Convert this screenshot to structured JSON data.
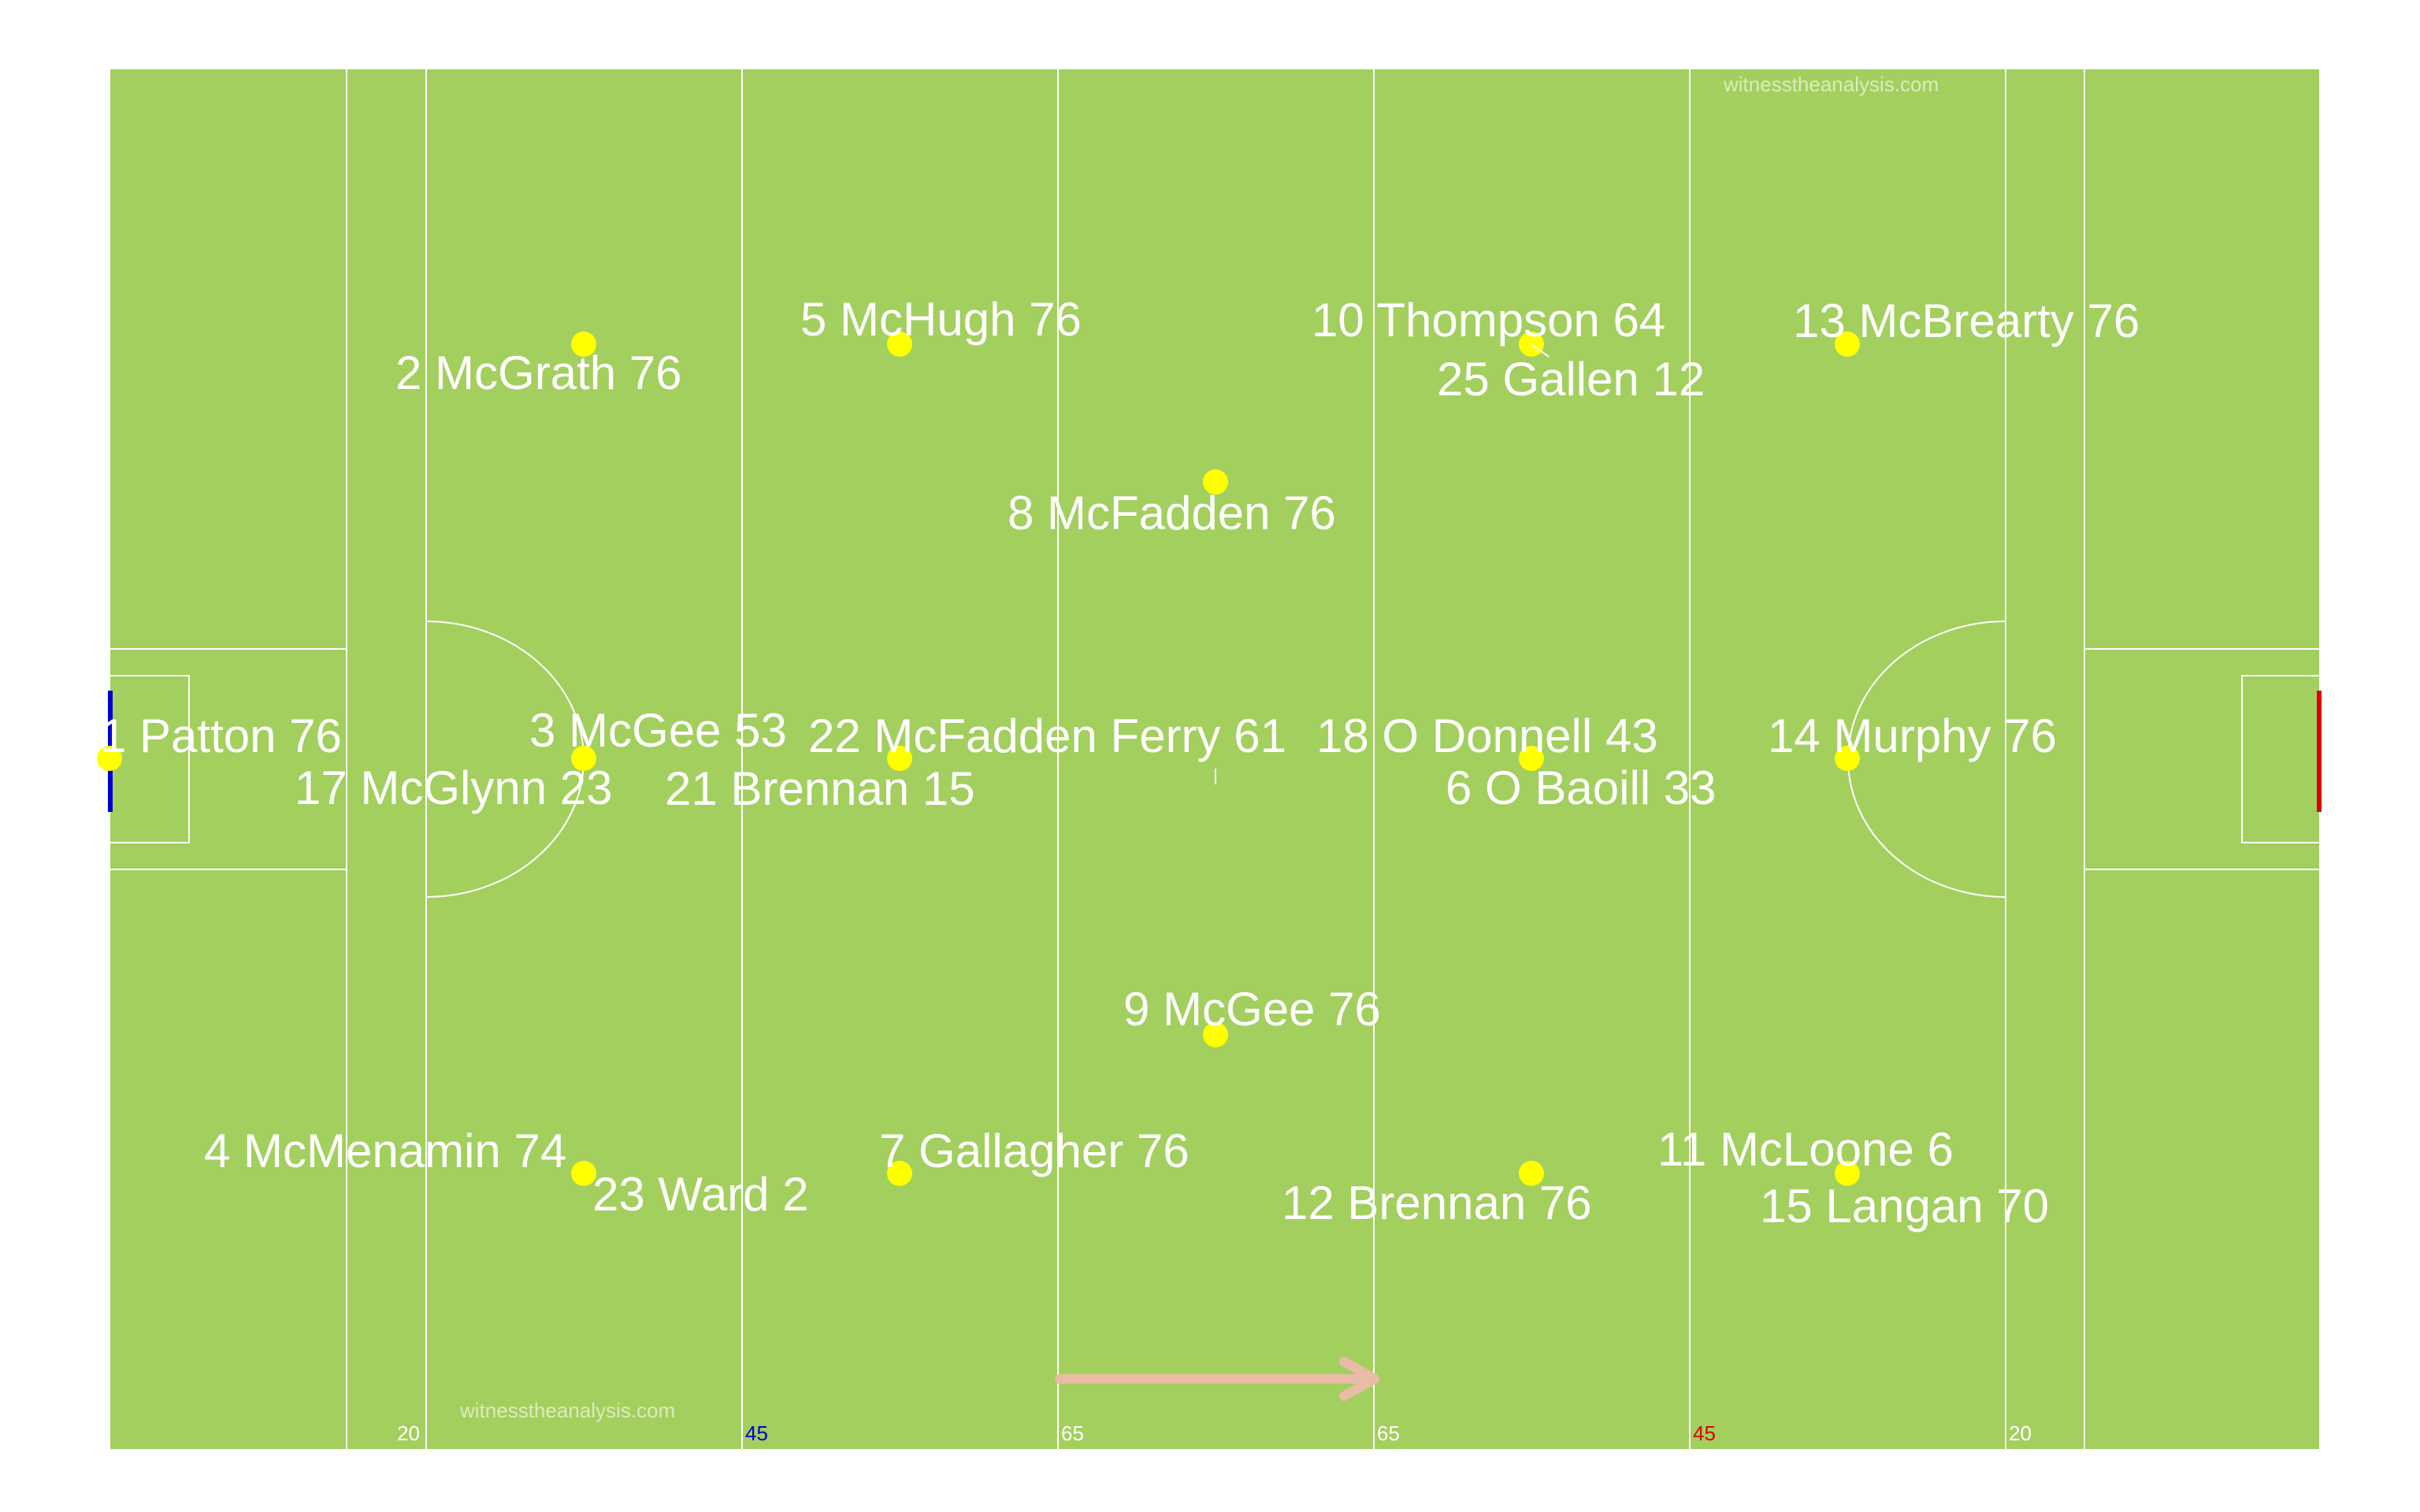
{
  "watermark_top": "witnesstheanalysis.com",
  "watermark_bottom": "witnesstheanalysis.com",
  "colors": {
    "pitch": "#a3cf5f",
    "lines": "#ffffff",
    "player_dot": "#ffff00",
    "label": "#ffffff",
    "goal_left": "#0000cc",
    "goal_right": "#dd0000",
    "arrow": "#e9bca8",
    "watermark": "#dcebbc"
  },
  "pitch_labels": [
    {
      "text": "20",
      "color": "#ffffff"
    },
    {
      "text": "45",
      "color": "#0000cc"
    },
    {
      "text": "65",
      "color": "#ffffff"
    },
    {
      "text": "65",
      "color": "#ffffff"
    },
    {
      "text": "45",
      "color": "#dd0000"
    },
    {
      "text": "20",
      "color": "#ffffff"
    }
  ],
  "players": [
    {
      "label": "1 Patton 76"
    },
    {
      "label": "17 McGlynn  23"
    },
    {
      "label": "2 McGrath 76"
    },
    {
      "label": "3 McGee 53"
    },
    {
      "label": "4 McMenamin 74"
    },
    {
      "label": "23 Ward 2"
    },
    {
      "label": "5 McHugh 76"
    },
    {
      "label": "22 McFadden Ferry 61"
    },
    {
      "label": "21 Brennan 15"
    },
    {
      "label": "7 Gallagher 76"
    },
    {
      "label": "8 McFadden 76"
    },
    {
      "label": "9 McGee 76"
    },
    {
      "label": "10 Thompson 64"
    },
    {
      "label": "25 Gallen  12"
    },
    {
      "label": "18 O Donnell 43"
    },
    {
      "label": "6 O Baoill  33"
    },
    {
      "label": "12 Brennan 76"
    },
    {
      "label": "13 McBrearty 76"
    },
    {
      "label": "14 Murphy 76"
    },
    {
      "label": "11 McLoone 6"
    },
    {
      "label": "15 Langan 70"
    }
  ]
}
